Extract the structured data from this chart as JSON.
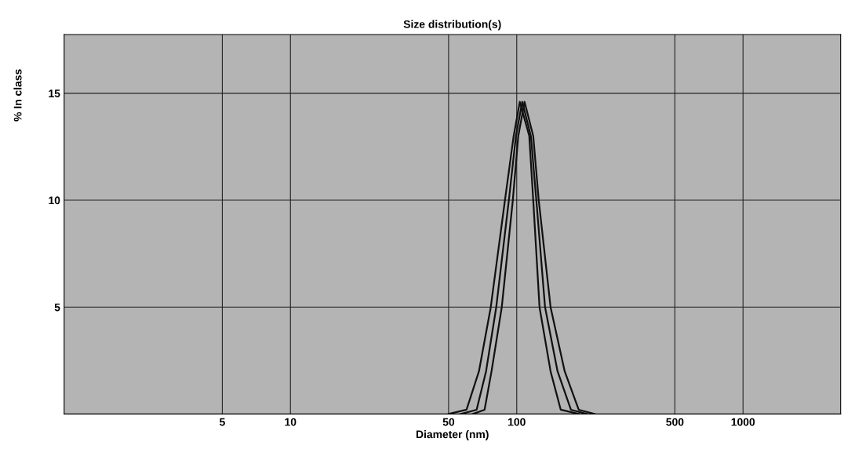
{
  "chart_data": {
    "type": "line",
    "title": "Size distribution(s)",
    "xlabel": "Diameter (nm)",
    "ylabel": "% In class",
    "log": "x",
    "xlim": [
      1,
      2700
    ],
    "xticks": [
      5,
      10,
      50,
      100,
      500,
      1000
    ],
    "ylim": [
      0,
      17.75
    ],
    "yticks": [
      5,
      10,
      15
    ],
    "grid": true,
    "marker": "none",
    "line_style": "solid",
    "series": [
      {
        "color": "#111111",
        "x": [
          50,
          60.0,
          68.1,
          76.8,
          88.7,
          96.9,
          103.2,
          113.6,
          118.3,
          126.1,
          141.1,
          156.5,
          187.9
        ],
        "values": [
          0,
          0.2,
          2,
          5,
          10,
          13,
          14.6,
          13,
          10,
          5,
          2,
          0.2,
          0
        ]
      },
      {
        "color": "#111111",
        "x": [
          56.7,
          66.5,
          73.2,
          81.2,
          92.3,
          99.2,
          105.8,
          115.5,
          122.1,
          133.4,
          151.5,
          173.6,
          203.7
        ],
        "values": [
          0,
          0.2,
          2,
          5,
          10,
          13,
          14.6,
          13,
          10,
          5,
          2,
          0.2,
          0
        ]
      },
      {
        "color": "#111111",
        "x": [
          64.0,
          72.1,
          77.4,
          85.9,
          96.1,
          101.6,
          108.3,
          118.3,
          125.1,
          141.1,
          162.9,
          187.9,
          220.6
        ],
        "values": [
          0,
          0.2,
          2,
          5,
          10,
          13,
          14.6,
          13,
          10,
          5,
          2,
          0.2,
          0
        ]
      }
    ]
  }
}
